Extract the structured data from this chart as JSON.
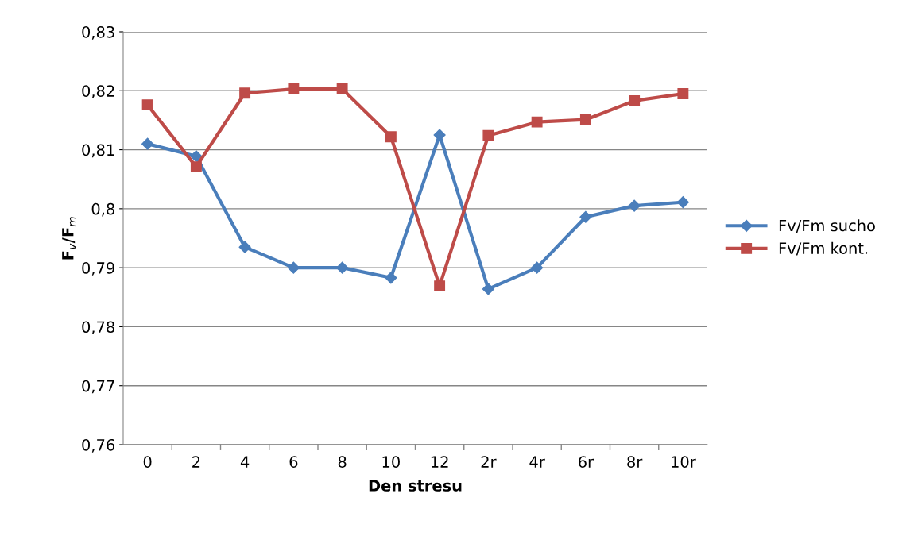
{
  "chart_data": {
    "type": "line",
    "xlabel": "Den stresu",
    "ylabel": "F$_{v}$/F$_{m}$",
    "categories": [
      "0",
      "2",
      "4",
      "6",
      "8",
      "10",
      "12",
      "2r",
      "4r",
      "6r",
      "8r",
      "10r"
    ],
    "series": [
      {
        "name": "Fv/Fm sucho",
        "color": "#4a7ebb",
        "marker": "diamond",
        "values": [
          0.811,
          0.8089,
          0.7935,
          0.79,
          0.79,
          0.7883,
          0.8125,
          0.7864,
          0.79,
          0.7986,
          0.8005,
          0.8011
        ]
      },
      {
        "name": "Fv/Fm kont.",
        "color": "#be4b48",
        "marker": "square",
        "values": [
          0.8176,
          0.8071,
          0.8196,
          0.8203,
          0.8203,
          0.8122,
          0.7869,
          0.8124,
          0.8147,
          0.8151,
          0.8183,
          0.8195
        ]
      }
    ],
    "ylim": [
      0.76,
      0.83
    ],
    "yticks": [
      {
        "value": 0.76,
        "label": "0,76"
      },
      {
        "value": 0.77,
        "label": "0,77"
      },
      {
        "value": 0.78,
        "label": "0,78"
      },
      {
        "value": 0.79,
        "label": "0,79"
      },
      {
        "value": 0.8,
        "label": "0,8"
      },
      {
        "value": 0.81,
        "label": "0,81"
      },
      {
        "value": 0.82,
        "label": "0,82"
      },
      {
        "value": 0.83,
        "label": "0,83"
      }
    ],
    "grid": "y",
    "legend": "right",
    "line_style": "solid"
  }
}
